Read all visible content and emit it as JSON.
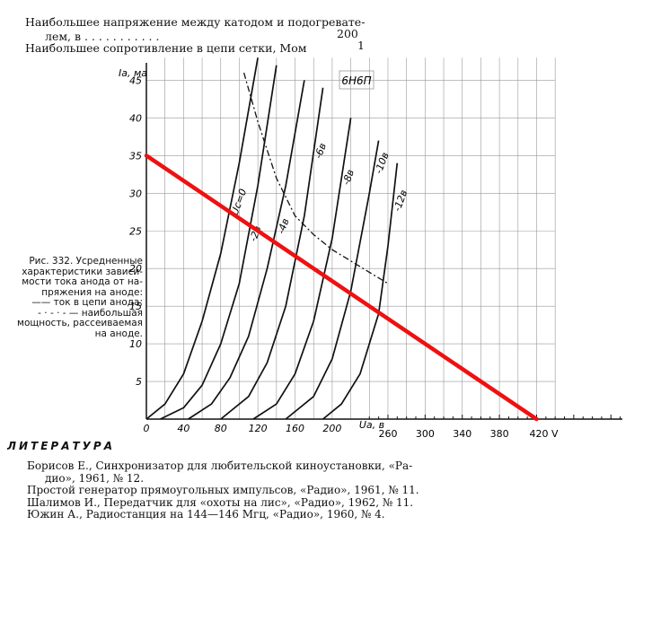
{
  "header": {
    "line1": "Наибольшее напряжение между катодом и подогревате-",
    "line2": "лем, в . . . . . . . . . . .",
    "line2_value": "200",
    "line3": "Наибольшее сопротивление в цепи сетки, Мом",
    "line3_value": "1"
  },
  "caption": {
    "lines": [
      "Рис. 332. Усредненные",
      "характеристики зависи-",
      "мости тока анода от на-",
      "пряжения на аноде:",
      "—— ток в цепи анода;",
      "- · - · - — наибольшая",
      "мощность, рассеиваемая",
      "на аноде."
    ]
  },
  "literature": {
    "heading": "ЛИТЕРАТУРА",
    "refs": [
      "Борисов Е., Синхронизатор для любительской киноустановки, «Ра-",
      "дио», 1961, № 12.",
      "Простой генератор прямоугольных импульсов, «Радио», 1961, № 11.",
      "Шалимов И., Передатчик для «охоты на лис», «Радио», 1962, № 11.",
      "Южин А., Радиостанция на 144—146 Мгц, «Радио», 1960, № 4."
    ]
  },
  "chart_data": {
    "type": "line",
    "tube_label": "6Н6П",
    "ylabel": "Ia, ма",
    "xlabel": "Ua, в",
    "xlim": [
      0,
      440
    ],
    "ylim": [
      0,
      48
    ],
    "y_ticks": [
      5,
      10,
      15,
      20,
      25,
      30,
      35,
      40,
      45
    ],
    "x_ticks_original": [
      0,
      40,
      80,
      120,
      160,
      200
    ],
    "x_ticks_extended": [
      260,
      300,
      340,
      380,
      420
    ],
    "x_ext_end_label": "420 V",
    "grid": true,
    "series": [
      {
        "name": "Uc=0",
        "x": [
          0,
          20,
          40,
          60,
          80,
          100,
          120
        ],
        "y": [
          0,
          2,
          6,
          13,
          22,
          34,
          48
        ]
      },
      {
        "name": "-2в",
        "x": [
          15,
          40,
          60,
          80,
          100,
          120,
          140
        ],
        "y": [
          0,
          1.5,
          4.5,
          10,
          18,
          31,
          47
        ]
      },
      {
        "name": "-4в",
        "x": [
          45,
          70,
          90,
          110,
          130,
          150,
          170
        ],
        "y": [
          0,
          2,
          5.5,
          11,
          20,
          31,
          45
        ]
      },
      {
        "name": "-6в",
        "x": [
          80,
          110,
          130,
          150,
          170,
          190
        ],
        "y": [
          0,
          3,
          7.5,
          15,
          27,
          44
        ]
      },
      {
        "name": "-8в",
        "x": [
          115,
          140,
          160,
          180,
          200,
          220
        ],
        "y": [
          0,
          2,
          6,
          13,
          24,
          40
        ]
      },
      {
        "name": "-10в",
        "x": [
          150,
          180,
          200,
          220,
          240,
          250
        ],
        "y": [
          0,
          3,
          8,
          17,
          30,
          37
        ]
      },
      {
        "name": "-12в",
        "x": [
          190,
          210,
          230,
          250,
          260,
          270
        ],
        "y": [
          0,
          2,
          6,
          14,
          23,
          34
        ]
      }
    ],
    "power_curve": {
      "x": [
        105,
        120,
        140,
        160,
        180,
        200,
        220,
        240,
        260
      ],
      "y": [
        46,
        39.5,
        32,
        27,
        24.5,
        22.5,
        21,
        19.5,
        18
      ]
    },
    "load_line": {
      "x": [
        0,
        420
      ],
      "y": [
        35,
        0
      ],
      "color": "#ee1111"
    }
  }
}
